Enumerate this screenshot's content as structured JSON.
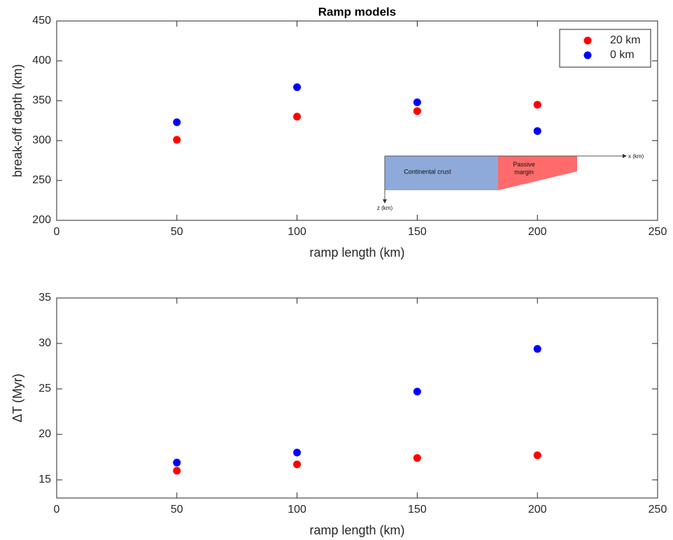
{
  "chart_data": [
    {
      "type": "scatter",
      "title": "Ramp models",
      "xlabel": "ramp length (km)",
      "ylabel": "break-off depth (km)",
      "x": [
        50,
        100,
        150,
        200
      ],
      "series": [
        {
          "name": "20 km",
          "color": "#ff0000",
          "values": [
            301,
            330,
            337,
            345
          ]
        },
        {
          "name": "0 km",
          "color": "#0000ff",
          "values": [
            323,
            367,
            348,
            312
          ]
        }
      ],
      "xlim": [
        0,
        250
      ],
      "xticks": [
        0,
        50,
        100,
        150,
        200,
        250
      ],
      "ylim": [
        200,
        450
      ],
      "yticks": [
        200,
        250,
        300,
        350,
        400,
        450
      ],
      "legend": "upper-right",
      "annotations": [
        "Continental crust",
        "Passive margin",
        "x (km)",
        "z (km)"
      ]
    },
    {
      "type": "scatter",
      "xlabel": "ramp length (km)",
      "ylabel": "ΔT (Myr)",
      "x": [
        50,
        100,
        150,
        200
      ],
      "series": [
        {
          "color": "#ff0000",
          "values": [
            16,
            16.7,
            17.4,
            17.7
          ]
        },
        {
          "color": "#0000ff",
          "values": [
            16.9,
            18,
            24.7,
            29.4
          ]
        }
      ],
      "xlim": [
        0,
        250
      ],
      "xticks": [
        0,
        50,
        100,
        150,
        200,
        250
      ],
      "ylim": [
        13,
        35
      ],
      "yticks": [
        15,
        20,
        25,
        30,
        35
      ]
    }
  ]
}
